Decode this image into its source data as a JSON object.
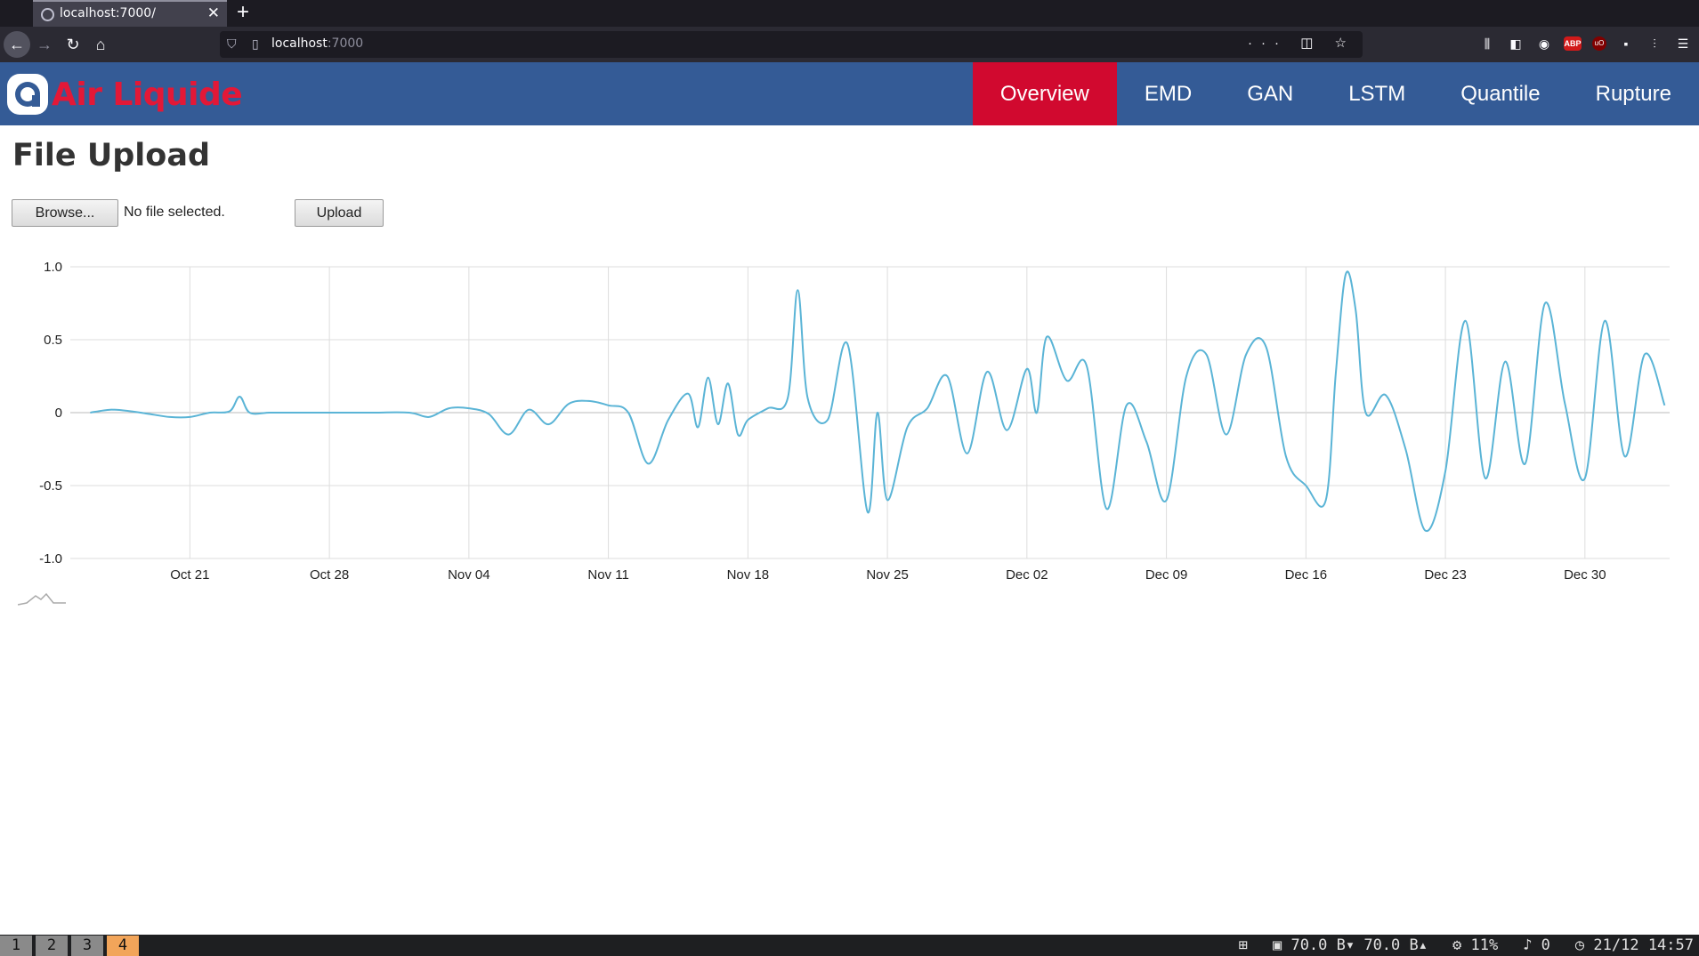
{
  "browser": {
    "tab_title": "localhost:7000/",
    "close_glyph": "✕",
    "new_tab_glyph": "+",
    "url_host": "localhost",
    "url_port": ":7000",
    "url_actions": "··· ◫ ☆"
  },
  "app": {
    "logo_text": "Air Liquide",
    "nav": [
      {
        "label": "Overview",
        "active": true
      },
      {
        "label": "EMD",
        "active": false
      },
      {
        "label": "GAN",
        "active": false
      },
      {
        "label": "LSTM",
        "active": false
      },
      {
        "label": "Quantile",
        "active": false
      },
      {
        "label": "Rupture",
        "active": false
      }
    ],
    "brand_colors": {
      "header": "#345b96",
      "accent": "#d1092f",
      "logo_red": "#e31837"
    }
  },
  "page": {
    "title": "File Upload",
    "browse_label": "Browse...",
    "file_status": "No file selected.",
    "upload_label": "Upload"
  },
  "chart_data": {
    "type": "line",
    "title": "",
    "xlabel": "",
    "ylabel": "",
    "ylim": [
      -1.0,
      1.0
    ],
    "yticks": [
      "1.0",
      "0.5",
      "0",
      "-0.5",
      "-1.0"
    ],
    "xticks": [
      "Oct 21",
      "Oct 28",
      "Nov 04",
      "Nov 11",
      "Nov 18",
      "Nov 25",
      "Dec 02",
      "Dec 09",
      "Dec 16",
      "Dec 23",
      "Dec 30"
    ],
    "grid": true,
    "line_color": "#5ab4d6",
    "series": [
      {
        "points": [
          [
            "2019-10-16",
            0.0
          ],
          [
            "2019-10-17",
            0.02
          ],
          [
            "2019-10-18",
            0.01
          ],
          [
            "2019-10-19",
            -0.01
          ],
          [
            "2019-10-20",
            -0.03
          ],
          [
            "2019-10-21",
            -0.03
          ],
          [
            "2019-10-22",
            0.0
          ],
          [
            "2019-10-23",
            0.01
          ],
          [
            "2019-10-23T12:00",
            0.11
          ],
          [
            "2019-10-24",
            0.0
          ],
          [
            "2019-10-25",
            0.0
          ],
          [
            "2019-10-26",
            0.0
          ],
          [
            "2019-10-28",
            0.0
          ],
          [
            "2019-10-30",
            0.0
          ],
          [
            "2019-11-01",
            0.0
          ],
          [
            "2019-11-02",
            -0.03
          ],
          [
            "2019-11-03",
            0.03
          ],
          [
            "2019-11-04",
            0.03
          ],
          [
            "2019-11-05",
            -0.01
          ],
          [
            "2019-11-06",
            -0.15
          ],
          [
            "2019-11-07",
            0.02
          ],
          [
            "2019-11-08",
            -0.08
          ],
          [
            "2019-11-09",
            0.06
          ],
          [
            "2019-11-10",
            0.08
          ],
          [
            "2019-11-11",
            0.05
          ],
          [
            "2019-11-12",
            0.0
          ],
          [
            "2019-11-13",
            -0.35
          ],
          [
            "2019-11-14",
            -0.05
          ],
          [
            "2019-11-15",
            0.13
          ],
          [
            "2019-11-15T12:00",
            -0.1
          ],
          [
            "2019-11-16",
            0.24
          ],
          [
            "2019-11-16T12:00",
            -0.08
          ],
          [
            "2019-11-17",
            0.2
          ],
          [
            "2019-11-17T12:00",
            -0.15
          ],
          [
            "2019-11-18",
            -0.05
          ],
          [
            "2019-11-19",
            0.03
          ],
          [
            "2019-11-20",
            0.1
          ],
          [
            "2019-11-20T12:00",
            0.84
          ],
          [
            "2019-11-21",
            0.1
          ],
          [
            "2019-11-22",
            -0.05
          ],
          [
            "2019-11-23",
            0.47
          ],
          [
            "2019-11-24",
            -0.68
          ],
          [
            "2019-11-24T12:00",
            0.0
          ],
          [
            "2019-11-25",
            -0.6
          ],
          [
            "2019-11-26",
            -0.1
          ],
          [
            "2019-11-27",
            0.03
          ],
          [
            "2019-11-28",
            0.25
          ],
          [
            "2019-11-29",
            -0.28
          ],
          [
            "2019-11-30",
            0.28
          ],
          [
            "2019-12-01",
            -0.12
          ],
          [
            "2019-12-02",
            0.3
          ],
          [
            "2019-12-02T12:00",
            0.0
          ],
          [
            "2019-12-03",
            0.52
          ],
          [
            "2019-12-04",
            0.22
          ],
          [
            "2019-12-05",
            0.32
          ],
          [
            "2019-12-06",
            -0.66
          ],
          [
            "2019-12-07",
            0.05
          ],
          [
            "2019-12-08",
            -0.2
          ],
          [
            "2019-12-09",
            -0.6
          ],
          [
            "2019-12-10",
            0.25
          ],
          [
            "2019-12-11",
            0.4
          ],
          [
            "2019-12-12",
            -0.15
          ],
          [
            "2019-12-13",
            0.4
          ],
          [
            "2019-12-14",
            0.45
          ],
          [
            "2019-12-15",
            -0.3
          ],
          [
            "2019-12-16",
            -0.5
          ],
          [
            "2019-12-17",
            -0.6
          ],
          [
            "2019-12-17T12:00",
            0.27
          ],
          [
            "2019-12-18",
            0.95
          ],
          [
            "2019-12-18T12:00",
            0.7
          ],
          [
            "2019-12-19",
            0.0
          ],
          [
            "2019-12-20",
            0.12
          ],
          [
            "2019-12-21",
            -0.25
          ],
          [
            "2019-12-22",
            -0.81
          ],
          [
            "2019-12-23",
            -0.4
          ],
          [
            "2019-12-24",
            0.63
          ],
          [
            "2019-12-25",
            -0.45
          ],
          [
            "2019-12-26",
            0.35
          ],
          [
            "2019-12-27",
            -0.35
          ],
          [
            "2019-12-28",
            0.75
          ],
          [
            "2019-12-29",
            0.06
          ],
          [
            "2019-12-30",
            -0.45
          ],
          [
            "2019-12-31",
            0.63
          ],
          [
            "2020-01-01",
            -0.3
          ],
          [
            "2020-01-02",
            0.4
          ],
          [
            "2020-01-03",
            0.05
          ]
        ]
      }
    ]
  },
  "statusbar": {
    "workspaces": [
      "1",
      "2",
      "3",
      "4"
    ],
    "active_workspace": "4",
    "net": "70.0 B▾ 70.0 B▴",
    "cpu": "11%",
    "notifications": "0",
    "clock": "21/12 14:57"
  }
}
